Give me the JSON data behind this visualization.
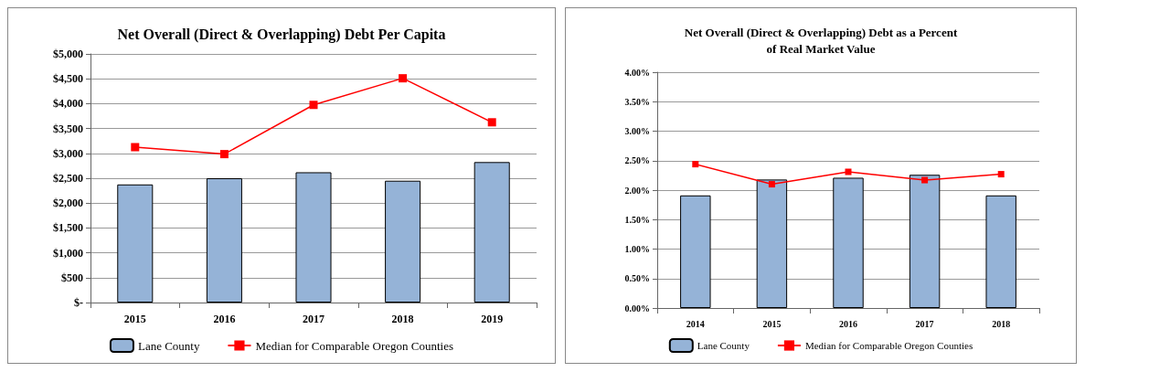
{
  "chart_data": [
    {
      "type": "bar",
      "title": "Net Overall (Direct & Overlapping) Debt Per Capita",
      "categories": [
        "2015",
        "2016",
        "2017",
        "2018",
        "2019"
      ],
      "series": [
        {
          "name": "Lane County",
          "color": "#95b3d7",
          "values": [
            2375,
            2500,
            2620,
            2450,
            2825
          ]
        },
        {
          "name": "Median for Comparable Oregon Counties",
          "type": "line",
          "color": "#ff0000",
          "values": [
            3125,
            2985,
            3975,
            4510,
            3625
          ]
        }
      ],
      "ylim": [
        0,
        5000
      ],
      "yticks": [
        {
          "value": 0,
          "label": "$-"
        },
        {
          "value": 500,
          "label": "$500"
        },
        {
          "value": 1000,
          "label": "$1,000"
        },
        {
          "value": 1500,
          "label": "$1,500"
        },
        {
          "value": 2000,
          "label": "$2,000"
        },
        {
          "value": 2500,
          "label": "$2,500"
        },
        {
          "value": 3000,
          "label": "$3,000"
        },
        {
          "value": 3500,
          "label": "$3,500"
        },
        {
          "value": 4000,
          "label": "$4,000"
        },
        {
          "value": 4500,
          "label": "$4,500"
        },
        {
          "value": 5000,
          "label": "$5,000"
        }
      ],
      "grid": "y",
      "legend": "bottom",
      "marker": "square"
    },
    {
      "type": "bar",
      "title": "Net Overall (Direct & Overlapping) Debt as a Percent\nof Real Market Value",
      "categories": [
        "2014",
        "2015",
        "2016",
        "2017",
        "2018"
      ],
      "series": [
        {
          "name": "Lane County",
          "color": "#95b3d7",
          "values": [
            1.91,
            2.18,
            2.21,
            2.26,
            1.91
          ]
        },
        {
          "name": "Median for Comparable Oregon Counties",
          "type": "line",
          "color": "#ff0000",
          "values": [
            2.44,
            2.1,
            2.31,
            2.17,
            2.27
          ]
        }
      ],
      "ylim": [
        0,
        4
      ],
      "yticks": [
        {
          "value": 0,
          "label": "0.00%"
        },
        {
          "value": 0.5,
          "label": "0.50%"
        },
        {
          "value": 1,
          "label": "1.00%"
        },
        {
          "value": 1.5,
          "label": "1.50%"
        },
        {
          "value": 2,
          "label": "2.00%"
        },
        {
          "value": 2.5,
          "label": "2.50%"
        },
        {
          "value": 3,
          "label": "3.00%"
        },
        {
          "value": 3.5,
          "label": "3.50%"
        },
        {
          "value": 4,
          "label": "4.00%"
        }
      ],
      "grid": "y",
      "legend": "bottom",
      "marker": "square"
    }
  ]
}
